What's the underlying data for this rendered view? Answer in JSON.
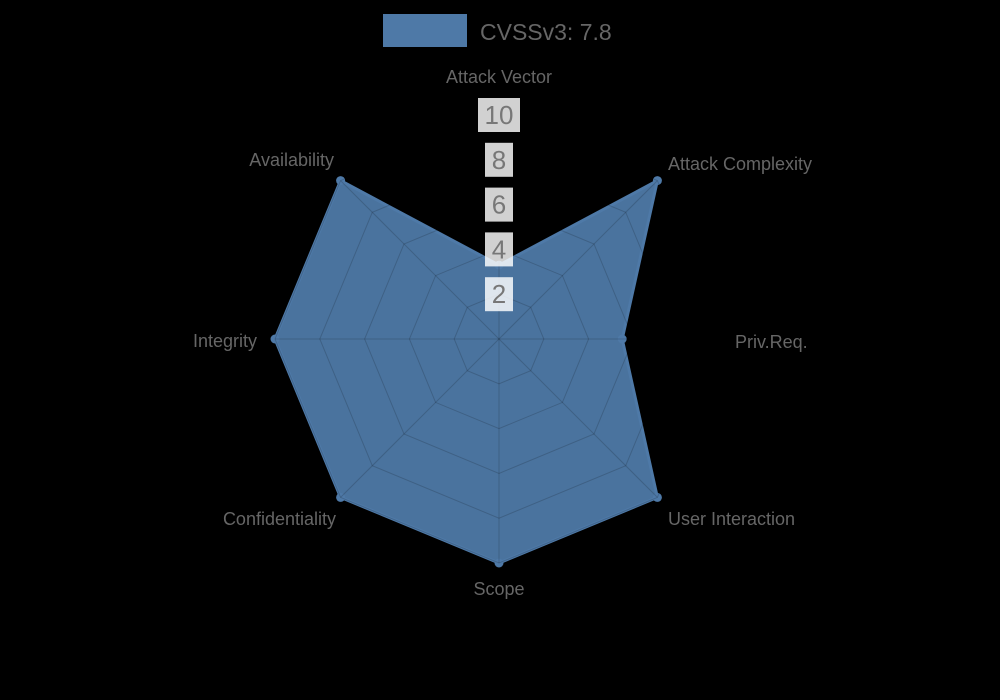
{
  "legend": {
    "label": "CVSSv3: 7.8",
    "swatch_color": "#4e79a7"
  },
  "chart_data": {
    "type": "radar",
    "title": "CVSSv3: 7.8",
    "categories": [
      "Attack Vector",
      "Attack Complexity",
      "Priv.Req.",
      "User Interaction",
      "Scope",
      "Confidentiality",
      "Integrity",
      "Availability"
    ],
    "series": [
      {
        "name": "CVSSv3: 7.8",
        "values": [
          3.3,
          10,
          5.5,
          10,
          10,
          10,
          10,
          10
        ]
      }
    ],
    "rlim": [
      0,
      10
    ],
    "tick_values": [
      2,
      4,
      6,
      8,
      10
    ],
    "tick_labels": [
      "2",
      "4",
      "6",
      "8",
      "10"
    ],
    "grid": true,
    "grid_shape": "polygon",
    "legend_position": "top",
    "colors": {
      "background": "#000000",
      "fill": "#4e79a7",
      "border": "#4e79a7",
      "grid_line": "rgba(0,0,0,0.16)",
      "tick_backdrop": "rgba(255,255,255,0.82)",
      "tick_text": "#777777",
      "label_text": "#666666",
      "legend_text": "#666666"
    }
  }
}
